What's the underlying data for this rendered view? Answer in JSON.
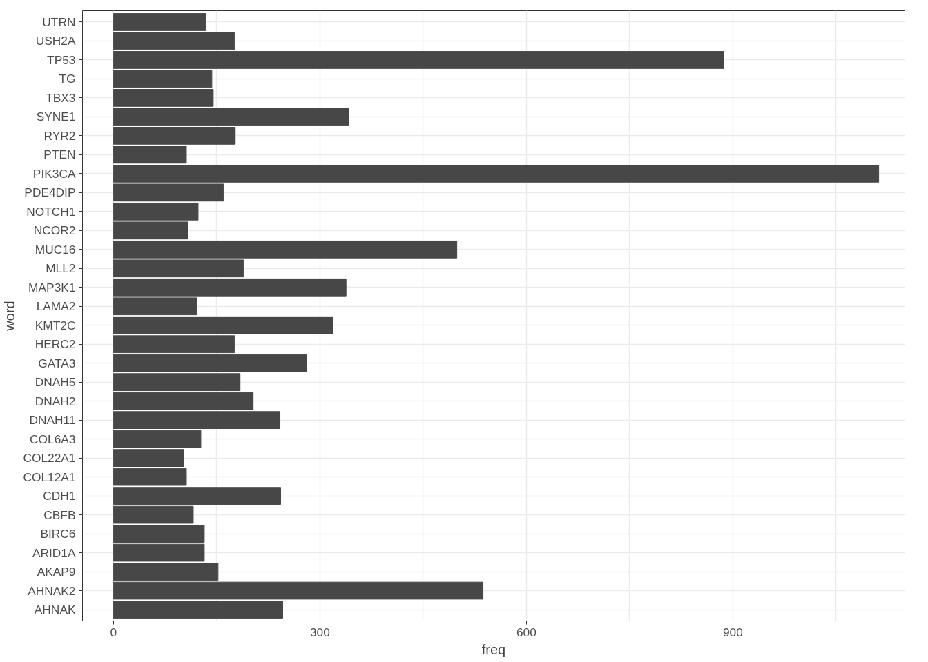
{
  "chart_data": {
    "type": "bar",
    "orientation": "horizontal",
    "xlabel": "freq",
    "ylabel": "word",
    "categories": [
      "UTRN",
      "USH2A",
      "TP53",
      "TG",
      "TBX3",
      "SYNE1",
      "RYR2",
      "PTEN",
      "PIK3CA",
      "PDE4DIP",
      "NOTCH1",
      "NCOR2",
      "MUC16",
      "MLL2",
      "MAP3K1",
      "LAMA2",
      "KMT2C",
      "HERC2",
      "GATA3",
      "DNAH5",
      "DNAH2",
      "DNAH11",
      "COL6A3",
      "COL22A1",
      "COL12A1",
      "CDH1",
      "CBFB",
      "BIRC6",
      "ARID1A",
      "AKAP9",
      "AHNAK2",
      "AHNAK"
    ],
    "values": [
      134,
      176,
      887,
      143,
      145,
      342,
      177,
      106,
      1112,
      160,
      123,
      108,
      499,
      189,
      338,
      121,
      319,
      176,
      281,
      184,
      203,
      242,
      127,
      102,
      106,
      243,
      116,
      132,
      132,
      152,
      537,
      246
    ],
    "color": "#474747",
    "xlim": [
      -45,
      1150
    ],
    "xticks": [
      0,
      {
        "value": 150,
        "label": null
      },
      300,
      {
        "value": 450,
        "label": null
      },
      600,
      {
        "value": 750,
        "label": null
      },
      900,
      {
        "value": 1050,
        "label": null
      }
    ],
    "grid": true
  }
}
